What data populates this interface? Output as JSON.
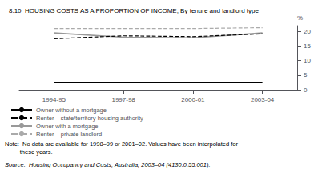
{
  "chart_data": {
    "type": "line",
    "title": "8.10  HOUSING COSTS AS A PROPORTION OF INCOME, By tenure and landlord type",
    "ylabel": "%",
    "categories": [
      "1994-95",
      "1997-98",
      "2000-01",
      "2003-04"
    ],
    "series": [
      {
        "name": "Renter – private landlord",
        "color": "#aaaaaa",
        "line_style": "dashed",
        "values": [
          21.0,
          21.0,
          21.0,
          21.3
        ]
      },
      {
        "name": "Owner with a mortgage",
        "color": "#999999",
        "line_style": "solid",
        "values": [
          19.5,
          18.0,
          17.8,
          19.5
        ]
      },
      {
        "name": "Renter – state/territory housing authority",
        "color": "#000000",
        "line_style": "dashed",
        "values": [
          17.5,
          18.5,
          18.2,
          19.2
        ]
      },
      {
        "name": "Owner without a mortgage",
        "color": "#000000",
        "line_style": "solid",
        "values": [
          2.5,
          2.5,
          2.5,
          2.5
        ]
      }
    ],
    "ylim": [
      0,
      22
    ],
    "yticks": [
      0,
      5,
      10,
      15,
      20
    ],
    "grid": false,
    "legend": "bottom",
    "annotations": [
      "Note:  No data are available for 1998–99 or 2001–02. Values have been interpolated for\n         these years.",
      "Source:  Housing Occupancy and Costs, Australia, 2003–04 (4130.0.55.001)."
    ]
  }
}
